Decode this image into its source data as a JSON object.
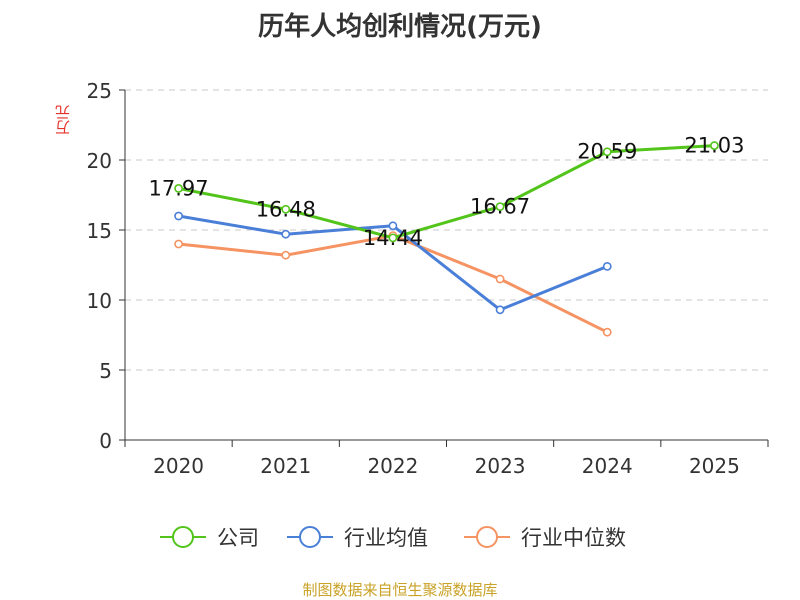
{
  "chart_data": {
    "type": "line",
    "title": "历年人均创利情况(万元)",
    "ylabel": "万元",
    "xlabel": "",
    "categories": [
      "2020",
      "2021",
      "2022",
      "2023",
      "2024",
      "2025"
    ],
    "ylim": [
      0,
      25
    ],
    "yticks": [
      "0",
      "5",
      "10",
      "15",
      "20",
      "25"
    ],
    "grid": true,
    "legend_position": "bottom",
    "series": [
      {
        "name": "公司",
        "color": "#52c41a",
        "values": [
          17.97,
          16.48,
          14.44,
          16.67,
          20.59,
          21.03
        ],
        "labels": [
          "17.97",
          "16.48",
          "14.44",
          "16.67",
          "20.59",
          "21.03"
        ]
      },
      {
        "name": "行业均值",
        "color": "#4a7fd8",
        "values": [
          16.0,
          14.7,
          15.3,
          9.3,
          12.4,
          null
        ]
      },
      {
        "name": "行业中位数",
        "color": "#f59362",
        "values": [
          14.0,
          13.2,
          14.6,
          11.5,
          7.7,
          null
        ]
      }
    ]
  },
  "source": "制图数据来自恒生聚源数据库"
}
